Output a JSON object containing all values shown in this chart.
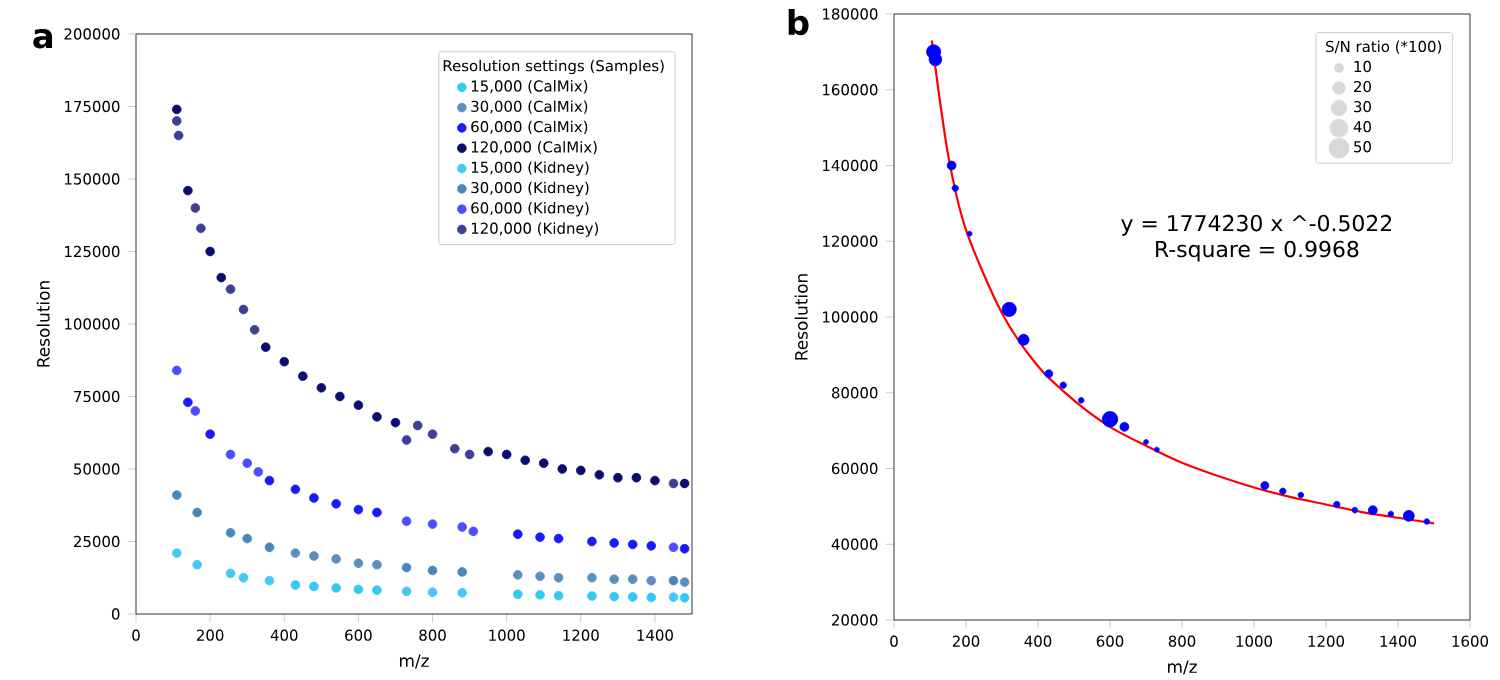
{
  "chart_data": [
    {
      "type": "scatter",
      "title": "a",
      "xlabel": "m/z",
      "ylabel": "Resolution",
      "legend_title": "Resolution settings (Samples)",
      "legend": "top right",
      "grid": false,
      "xlim": [
        0,
        1500
      ],
      "xticks": [
        0,
        200,
        400,
        600,
        800,
        1000,
        1200,
        1400
      ],
      "ylim": [
        0,
        200000
      ],
      "yticks": [
        0,
        25000,
        50000,
        75000,
        100000,
        125000,
        150000,
        175000,
        200000
      ],
      "series": [
        {
          "name": "15,000 (CalMix)",
          "color": "#33c8f5",
          "x": [
            430,
            480,
            540,
            600,
            650,
            1030,
            1090,
            1140,
            1230,
            1290,
            1340,
            1390,
            1480
          ],
          "values": [
            10000,
            9500,
            9000,
            8500,
            8200,
            6800,
            6600,
            6300,
            6200,
            6000,
            5900,
            5700,
            5600
          ]
        },
        {
          "name": "30,000 (CalMix)",
          "color": "#5a8fc0",
          "x": [
            430,
            480,
            540,
            600,
            650,
            1030,
            1090,
            1140,
            1230,
            1290,
            1340,
            1390,
            1480
          ],
          "values": [
            21000,
            20000,
            19000,
            17500,
            17000,
            13500,
            13000,
            12500,
            12500,
            12000,
            12000,
            11500,
            11000
          ]
        },
        {
          "name": "60,000 (CalMix)",
          "color": "#1a1aff",
          "x": [
            140,
            200,
            360,
            430,
            480,
            540,
            600,
            650,
            1030,
            1090,
            1140,
            1230,
            1290,
            1340,
            1390,
            1480
          ],
          "values": [
            73000,
            62000,
            46000,
            43000,
            40000,
            38000,
            36000,
            35000,
            27500,
            26500,
            26000,
            25000,
            24500,
            24000,
            23500,
            22500
          ]
        },
        {
          "name": "120,000 (CalMix)",
          "color": "#0c0c70",
          "x": [
            110,
            140,
            200,
            230,
            350,
            400,
            450,
            500,
            550,
            600,
            650,
            700,
            950,
            1000,
            1050,
            1100,
            1150,
            1200,
            1250,
            1300,
            1350,
            1400,
            1480
          ],
          "values": [
            174000,
            146000,
            125000,
            116000,
            92000,
            87000,
            82000,
            78000,
            75000,
            72000,
            68000,
            66000,
            56000,
            55000,
            53000,
            52000,
            50000,
            49500,
            48000,
            47000,
            47000,
            46000,
            45000
          ]
        },
        {
          "name": "15,000 (Kidney)",
          "color": "#45c8f8",
          "x": [
            110,
            165,
            255,
            290,
            360,
            730,
            800,
            880,
            1450
          ],
          "values": [
            21000,
            17000,
            14000,
            12500,
            11500,
            7800,
            7500,
            7300,
            5800
          ]
        },
        {
          "name": "30,000 (Kidney)",
          "color": "#4a86b8",
          "x": [
            110,
            165,
            255,
            300,
            360,
            730,
            800,
            880,
            1450
          ],
          "values": [
            41000,
            35000,
            28000,
            26000,
            23000,
            16000,
            15000,
            14500,
            11500
          ]
        },
        {
          "name": "60,000 (Kidney)",
          "color": "#4d4dff",
          "x": [
            110,
            160,
            255,
            300,
            330,
            730,
            800,
            880,
            910,
            1450
          ],
          "values": [
            84000,
            70000,
            55000,
            52000,
            49000,
            32000,
            31000,
            30000,
            28500,
            23000
          ]
        },
        {
          "name": "120,000 (Kidney)",
          "color": "#3f3f95",
          "x": [
            110,
            115,
            160,
            175,
            255,
            290,
            320,
            730,
            760,
            800,
            860,
            900,
            1450
          ],
          "values": [
            170000,
            165000,
            140000,
            133000,
            112000,
            105000,
            98000,
            60000,
            65000,
            62000,
            57000,
            55000,
            45000
          ]
        }
      ]
    },
    {
      "type": "bubble",
      "title": "b",
      "xlabel": "m/z",
      "ylabel": "Resolution",
      "legend_title": "S/N ratio (*100)",
      "grid": false,
      "xlim": [
        0,
        1600
      ],
      "xticks": [
        0,
        200,
        400,
        600,
        800,
        1000,
        1200,
        1400,
        1600
      ],
      "ylim": [
        20000,
        180000
      ],
      "yticks": [
        20000,
        40000,
        60000,
        80000,
        100000,
        120000,
        140000,
        160000,
        180000
      ],
      "size_legend": [
        10,
        20,
        30,
        40,
        50
      ],
      "annotations": [
        "y = 1774230 x ^-0.5022",
        "R-square = 0.9968"
      ],
      "series": [
        {
          "color": "#0000ff",
          "x": [
            110,
            115,
            160,
            170,
            210,
            320,
            360,
            430,
            470,
            520,
            600,
            640,
            700,
            730,
            1030,
            1080,
            1130,
            1230,
            1280,
            1330,
            1380,
            1430,
            1480
          ],
          "values": [
            170000,
            168000,
            140000,
            134000,
            122000,
            102000,
            94000,
            85000,
            82000,
            78000,
            73000,
            71000,
            67000,
            65000,
            55500,
            54000,
            53000,
            50500,
            49000,
            49000,
            48000,
            47500,
            46000
          ],
          "sizes": [
            25,
            20,
            10,
            5,
            3,
            25,
            15,
            8,
            5,
            4,
            30,
            10,
            3,
            3,
            8,
            5,
            4,
            5,
            4,
            10,
            4,
            15,
            4
          ]
        },
        {
          "type": "line",
          "color": "#ff0000",
          "x": [
            105,
            150,
            200,
            300,
            400,
            500,
            600,
            700,
            800,
            900,
            1000,
            1100,
            1200,
            1300,
            1400,
            1500
          ],
          "values": [
            173000,
            143000,
            123000,
            101000,
            87000,
            78000,
            71000,
            66000,
            61500,
            58000,
            55000,
            52500,
            50500,
            48500,
            47000,
            45500
          ]
        }
      ]
    }
  ]
}
